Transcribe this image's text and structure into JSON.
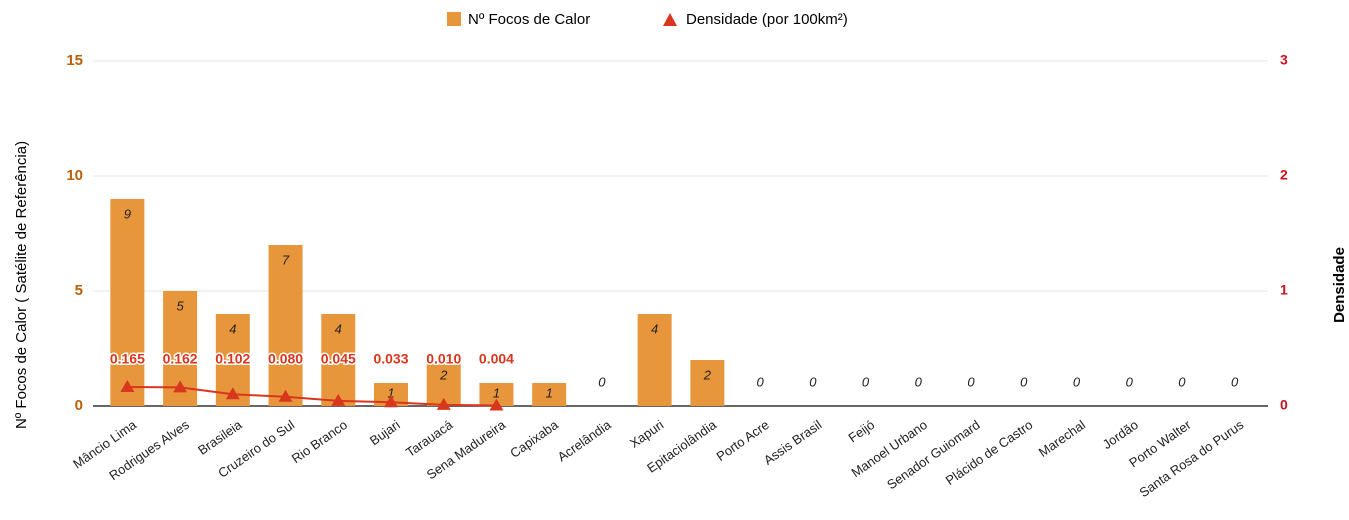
{
  "chart_data": {
    "type": "bar_line",
    "legend": [
      "Nº Focos de Calor",
      "Densidade (por 100km²)"
    ],
    "ylabel": "Nº Focos de Calor ( Satélite de Referência)",
    "y2label": "Densidade",
    "categories": [
      "Mâncio Lima",
      "Rodrigues Alves",
      "Brasileia",
      "Cruzeiro do Sul",
      "Rio Branco",
      "Bujari",
      "Tarauacá",
      "Sena Madureira",
      "Capixaba",
      "Acrelândia",
      "Xapuri",
      "Epitaciolândia",
      "Porto Acre",
      "Assis Brasil",
      "Feijó",
      "Manoel Urbano",
      "Senador Guiomard",
      "Plácido de Castro",
      "Marechal",
      "Jordão",
      "Porto Walter",
      "Santa Rosa do Purus"
    ],
    "series": [
      {
        "name": "Nº Focos de Calor",
        "color": "#e8963c",
        "kind": "bar",
        "values": [
          9,
          5,
          4,
          7,
          4,
          1,
          2,
          1,
          1,
          0,
          4,
          2,
          0,
          0,
          0,
          0,
          0,
          0,
          0,
          0,
          0,
          0
        ]
      },
      {
        "name": "Densidade (por 100km²)",
        "color": "#d9361e",
        "kind": "line",
        "axis": "y2",
        "values": [
          0.165,
          0.162,
          0.102,
          0.08,
          0.045,
          0.033,
          0.01,
          0.004,
          null,
          null,
          null,
          null,
          null,
          null,
          null,
          null,
          null,
          null,
          null,
          null,
          null,
          null
        ],
        "value_labels": [
          "0.165",
          "0.162",
          "0.102",
          "0.080",
          "0.045",
          "0.033",
          "0.010",
          "0.004",
          null,
          null,
          null,
          null,
          null,
          null,
          null,
          null,
          null,
          null,
          null,
          null,
          null,
          null
        ]
      }
    ],
    "ylim": [
      0,
      15
    ],
    "yticks": [
      0,
      5,
      10,
      15
    ],
    "y2lim": [
      0,
      3
    ],
    "y2ticks": [
      0,
      1,
      2,
      3
    ],
    "grid": true
  }
}
